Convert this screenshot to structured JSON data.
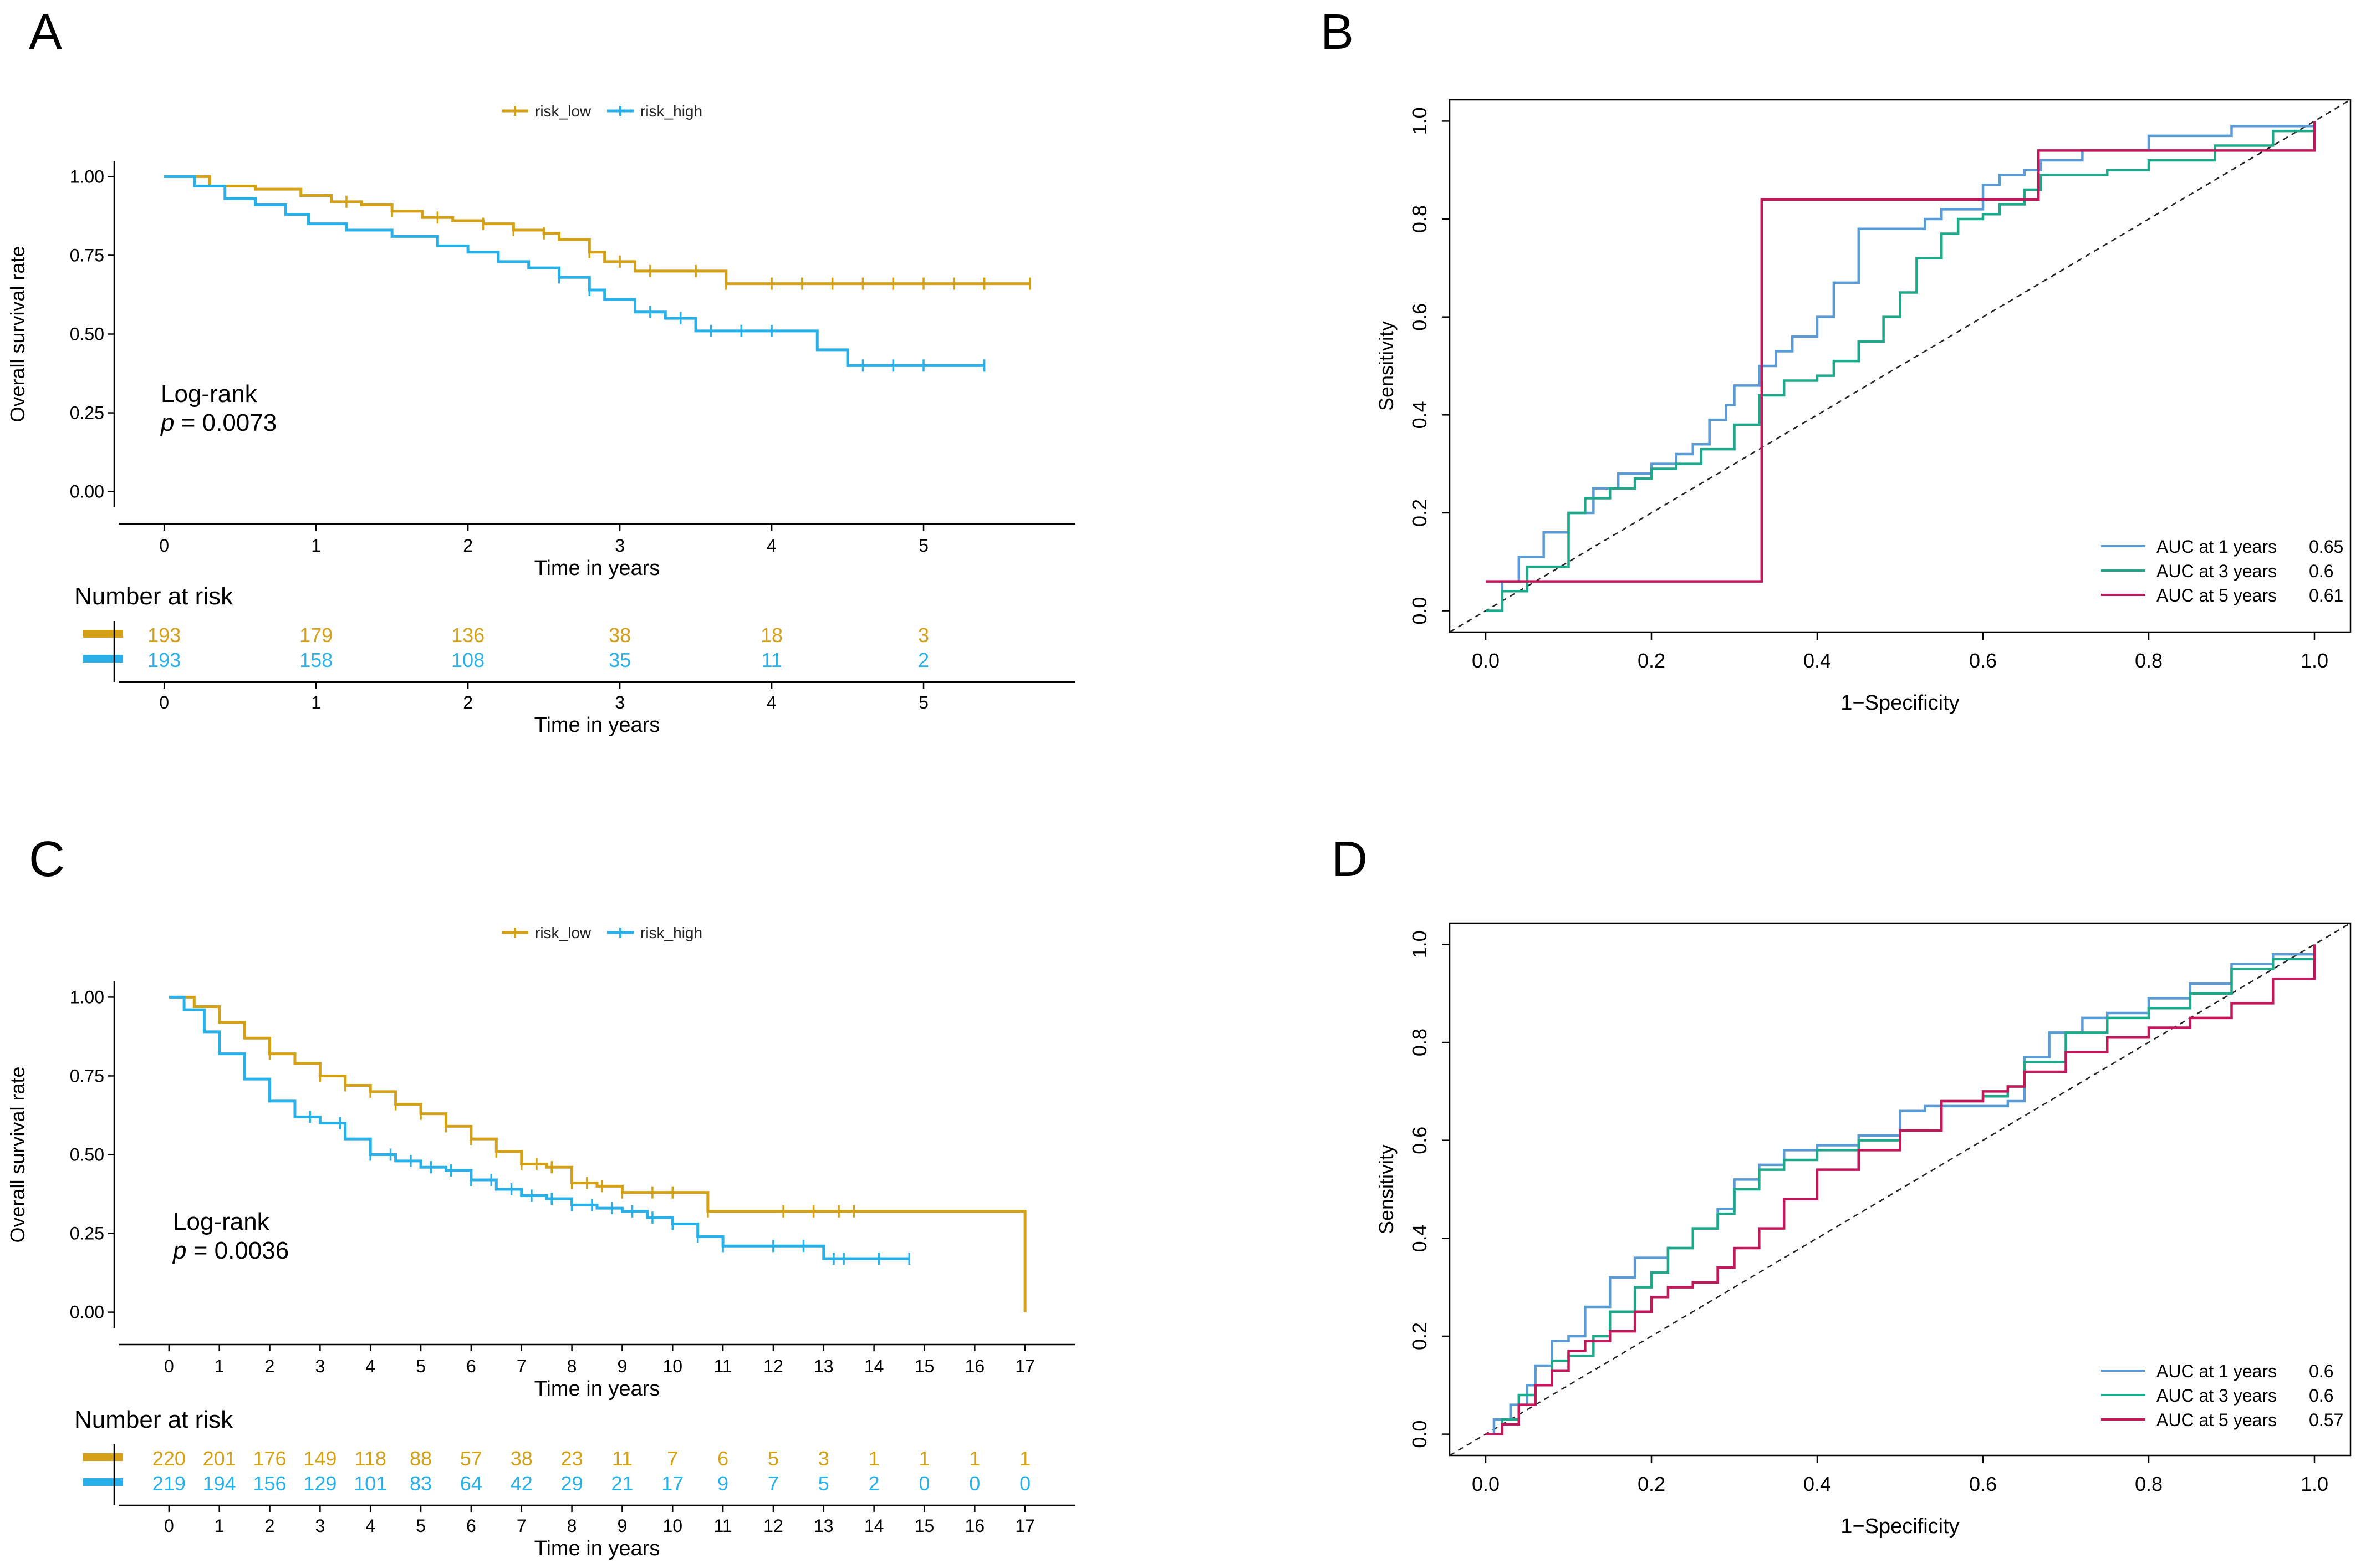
{
  "colors": {
    "low": "#D4A017",
    "high": "#29B0E8",
    "roc1": "#5B9BD5",
    "roc3": "#1FA98A",
    "roc5": "#C2185B"
  },
  "chart_data": [
    {
      "panel": "A",
      "type": "line",
      "subtype": "kaplan-meier",
      "legend": [
        "risk_low",
        "risk_high"
      ],
      "xlabel": "Time in years",
      "ylabel": "Overall survival rate",
      "xlim": [
        -0.3,
        6
      ],
      "ylim": [
        -0.05,
        1.05
      ],
      "xticks": [
        "0",
        "1",
        "2",
        "3",
        "4",
        "5"
      ],
      "yticks": [
        "0.00",
        "0.25",
        "0.50",
        "0.75",
        "1.00"
      ],
      "annotation": {
        "line1": "Log-rank",
        "p_label": "p",
        "p_value": "= 0.0073"
      },
      "series": [
        {
          "name": "risk_low",
          "x": [
            0,
            0.3,
            0.6,
            0.9,
            1.1,
            1.3,
            1.5,
            1.7,
            1.9,
            2.1,
            2.3,
            2.5,
            2.6,
            2.8,
            2.9,
            3.1,
            3.4,
            3.7,
            4.2,
            4.8,
            5.2,
            5.7
          ],
          "y": [
            1,
            0.97,
            0.96,
            0.94,
            0.92,
            0.91,
            0.89,
            0.87,
            0.86,
            0.85,
            0.83,
            0.82,
            0.8,
            0.76,
            0.73,
            0.7,
            0.7,
            0.66,
            0.66,
            0.66,
            0.66,
            0.66
          ]
        },
        {
          "name": "risk_high",
          "x": [
            0,
            0.2,
            0.4,
            0.6,
            0.8,
            0.95,
            1.2,
            1.5,
            1.8,
            2.0,
            2.2,
            2.4,
            2.6,
            2.8,
            2.9,
            3.1,
            3.3,
            3.5,
            3.9,
            4.3,
            4.5,
            5.0,
            5.4
          ],
          "y": [
            1,
            0.97,
            0.93,
            0.91,
            0.88,
            0.85,
            0.83,
            0.81,
            0.78,
            0.76,
            0.73,
            0.71,
            0.68,
            0.64,
            0.61,
            0.57,
            0.55,
            0.51,
            0.51,
            0.45,
            0.4,
            0.4,
            0.4
          ]
        }
      ],
      "censor_low": [
        1.2,
        1.5,
        1.8,
        2.1,
        2.3,
        2.5,
        2.8,
        3.0,
        3.2,
        3.5,
        3.7,
        4.0,
        4.2,
        4.4,
        4.6,
        4.8,
        5.0,
        5.2,
        5.4,
        5.7
      ],
      "censor_high": [
        2.6,
        2.8,
        3.2,
        3.4,
        3.6,
        3.8,
        4.0,
        4.6,
        4.8,
        5.0,
        5.4
      ],
      "risk_table": {
        "title": "Number at risk",
        "times": [
          "0",
          "1",
          "2",
          "3",
          "4",
          "5"
        ],
        "low": [
          "193",
          "179",
          "136",
          "38",
          "18",
          "3"
        ],
        "high": [
          "193",
          "158",
          "108",
          "35",
          "11",
          "2"
        ],
        "xlabel": "Time in years"
      }
    },
    {
      "panel": "B",
      "type": "line",
      "subtype": "roc",
      "xlabel": "1−Specificity",
      "ylabel": "Sensitivity",
      "xlim": [
        0,
        1
      ],
      "ylim": [
        0,
        1
      ],
      "xticks": [
        "0.0",
        "0.2",
        "0.4",
        "0.6",
        "0.8",
        "1.0"
      ],
      "yticks": [
        "0.0",
        "0.2",
        "0.4",
        "0.6",
        "0.8",
        "1.0"
      ],
      "series": [
        {
          "name": "AUC at 1 years",
          "auc": "0.65",
          "x": [
            0,
            0.02,
            0.02,
            0.04,
            0.04,
            0.07,
            0.1,
            0.13,
            0.16,
            0.2,
            0.23,
            0.25,
            0.27,
            0.29,
            0.3,
            0.33,
            0.35,
            0.37,
            0.4,
            0.42,
            0.45,
            0.5,
            0.53,
            0.55,
            0.57,
            0.6,
            0.62,
            0.65,
            0.67,
            0.72,
            0.8,
            0.9,
            1
          ],
          "y": [
            0,
            0.02,
            0.06,
            0.06,
            0.11,
            0.16,
            0.2,
            0.25,
            0.28,
            0.3,
            0.32,
            0.34,
            0.39,
            0.42,
            0.46,
            0.5,
            0.53,
            0.56,
            0.6,
            0.67,
            0.78,
            0.78,
            0.8,
            0.82,
            0.82,
            0.87,
            0.89,
            0.9,
            0.92,
            0.94,
            0.97,
            0.99,
            1
          ]
        },
        {
          "name": "AUC at 3 years",
          "auc": "0.6",
          "x": [
            0,
            0.02,
            0.05,
            0.1,
            0.12,
            0.15,
            0.18,
            0.2,
            0.23,
            0.26,
            0.3,
            0.33,
            0.36,
            0.4,
            0.42,
            0.45,
            0.48,
            0.5,
            0.52,
            0.55,
            0.57,
            0.6,
            0.62,
            0.65,
            0.67,
            0.7,
            0.75,
            0.8,
            0.88,
            0.95,
            1
          ],
          "y": [
            0,
            0.04,
            0.09,
            0.2,
            0.23,
            0.25,
            0.27,
            0.29,
            0.3,
            0.33,
            0.38,
            0.44,
            0.47,
            0.48,
            0.51,
            0.55,
            0.6,
            0.65,
            0.72,
            0.77,
            0.8,
            0.81,
            0.83,
            0.86,
            0.89,
            0.89,
            0.9,
            0.92,
            0.95,
            0.98,
            1
          ]
        },
        {
          "name": "AUC at 5 years",
          "auc": "0.61",
          "x": [
            0,
            0.333,
            0.333,
            0.667,
            0.667,
            1,
            1
          ],
          "y": [
            0.06,
            0.06,
            0.84,
            0.84,
            0.94,
            0.94,
            1
          ]
        }
      ]
    },
    {
      "panel": "C",
      "type": "line",
      "subtype": "kaplan-meier",
      "legend": [
        "risk_low",
        "risk_high"
      ],
      "xlabel": "Time in years",
      "ylabel": "Overall survival rate",
      "xlim": [
        -1,
        18
      ],
      "ylim": [
        -0.05,
        1.05
      ],
      "xticks": [
        "0",
        "1",
        "2",
        "3",
        "4",
        "5",
        "6",
        "7",
        "8",
        "9",
        "10",
        "11",
        "12",
        "13",
        "14",
        "15",
        "16",
        "17"
      ],
      "yticks": [
        "0.00",
        "0.25",
        "0.50",
        "0.75",
        "1.00"
      ],
      "annotation": {
        "line1": "Log-rank",
        "p_label": "p",
        "p_value": "= 0.0036"
      },
      "series": [
        {
          "name": "risk_low",
          "x": [
            0,
            0.5,
            1,
            1.5,
            2,
            2.5,
            3,
            3.5,
            4,
            4.5,
            5,
            5.5,
            6,
            6.5,
            7,
            7.5,
            8,
            8.5,
            9,
            10,
            10.7,
            11,
            12,
            13,
            14,
            15,
            16,
            17,
            17
          ],
          "y": [
            1,
            0.97,
            0.92,
            0.87,
            0.82,
            0.79,
            0.75,
            0.72,
            0.7,
            0.66,
            0.63,
            0.59,
            0.55,
            0.51,
            0.47,
            0.46,
            0.41,
            0.4,
            0.38,
            0.38,
            0.32,
            0.32,
            0.32,
            0.32,
            0.32,
            0.32,
            0.32,
            0.32,
            0.0
          ]
        },
        {
          "name": "risk_high",
          "x": [
            0,
            0.3,
            0.7,
            1,
            1.5,
            2,
            2.5,
            3,
            3.5,
            4,
            4.5,
            5,
            5.5,
            6,
            6.5,
            7,
            7.5,
            8,
            8.5,
            9,
            9.5,
            10,
            10.5,
            11,
            12,
            13,
            13.5,
            14,
            14.7
          ],
          "y": [
            1,
            0.96,
            0.89,
            0.82,
            0.74,
            0.67,
            0.62,
            0.6,
            0.55,
            0.5,
            0.48,
            0.46,
            0.45,
            0.42,
            0.39,
            0.37,
            0.36,
            0.34,
            0.33,
            0.32,
            0.3,
            0.28,
            0.24,
            0.21,
            0.21,
            0.17,
            0.17,
            0.17,
            0.17
          ]
        }
      ],
      "censor_low": [
        2,
        3,
        3.5,
        4,
        4.5,
        5,
        5.5,
        6,
        6.5,
        7,
        7.3,
        7.6,
        8,
        8.3,
        8.6,
        9,
        9.6,
        10,
        10.7,
        12.2,
        12.8,
        13.3,
        13.6
      ],
      "censor_high": [
        2.8,
        3.4,
        4,
        4.4,
        4.8,
        5.2,
        5.6,
        6,
        6.4,
        6.8,
        7.2,
        7.6,
        8,
        8.4,
        8.8,
        9.2,
        9.6,
        10,
        10.5,
        11,
        12,
        12.6,
        13.2,
        13.4,
        14.1,
        14.7
      ],
      "risk_table": {
        "title": "Number at risk",
        "times": [
          "0",
          "1",
          "2",
          "3",
          "4",
          "5",
          "6",
          "7",
          "8",
          "9",
          "10",
          "11",
          "12",
          "13",
          "14",
          "15",
          "16",
          "17"
        ],
        "low": [
          "220",
          "201",
          "176",
          "149",
          "118",
          "88",
          "57",
          "38",
          "23",
          "11",
          "7",
          "6",
          "5",
          "3",
          "1",
          "1",
          "1",
          "1"
        ],
        "high": [
          "219",
          "194",
          "156",
          "129",
          "101",
          "83",
          "64",
          "42",
          "29",
          "21",
          "17",
          "9",
          "7",
          "5",
          "2",
          "0",
          "0",
          "0"
        ],
        "xlabel": "Time in years"
      }
    },
    {
      "panel": "D",
      "type": "line",
      "subtype": "roc",
      "xlabel": "1−Specificity",
      "ylabel": "Sensitivity",
      "xlim": [
        0,
        1
      ],
      "ylim": [
        0,
        1
      ],
      "xticks": [
        "0.0",
        "0.2",
        "0.4",
        "0.6",
        "0.8",
        "1.0"
      ],
      "yticks": [
        "0.0",
        "0.2",
        "0.4",
        "0.6",
        "0.8",
        "1.0"
      ],
      "series": [
        {
          "name": "AUC at 1 years",
          "auc": "0.6",
          "x": [
            0,
            0.01,
            0.03,
            0.05,
            0.06,
            0.08,
            0.1,
            0.12,
            0.15,
            0.18,
            0.2,
            0.22,
            0.25,
            0.28,
            0.3,
            0.33,
            0.36,
            0.4,
            0.45,
            0.5,
            0.53,
            0.6,
            0.63,
            0.65,
            0.68,
            0.72,
            0.75,
            0.8,
            0.85,
            0.9,
            0.95,
            1
          ],
          "y": [
            0,
            0.03,
            0.06,
            0.1,
            0.14,
            0.19,
            0.2,
            0.26,
            0.32,
            0.36,
            0.36,
            0.38,
            0.42,
            0.46,
            0.52,
            0.55,
            0.58,
            0.59,
            0.61,
            0.66,
            0.67,
            0.67,
            0.68,
            0.77,
            0.82,
            0.85,
            0.86,
            0.89,
            0.92,
            0.96,
            0.98,
            1
          ]
        },
        {
          "name": "AUC at 3 years",
          "auc": "0.6",
          "x": [
            0,
            0.02,
            0.04,
            0.06,
            0.08,
            0.1,
            0.13,
            0.15,
            0.18,
            0.2,
            0.22,
            0.25,
            0.28,
            0.3,
            0.33,
            0.36,
            0.4,
            0.45,
            0.5,
            0.55,
            0.6,
            0.63,
            0.65,
            0.7,
            0.75,
            0.8,
            0.85,
            0.9,
            0.95,
            1
          ],
          "y": [
            0,
            0.03,
            0.08,
            0.1,
            0.15,
            0.16,
            0.2,
            0.25,
            0.3,
            0.33,
            0.38,
            0.42,
            0.45,
            0.5,
            0.54,
            0.56,
            0.58,
            0.6,
            0.62,
            0.68,
            0.69,
            0.71,
            0.76,
            0.82,
            0.85,
            0.87,
            0.9,
            0.95,
            0.97,
            1
          ]
        },
        {
          "name": "AUC at 5 years",
          "auc": "0.57",
          "x": [
            0,
            0.02,
            0.04,
            0.06,
            0.08,
            0.1,
            0.12,
            0.15,
            0.18,
            0.2,
            0.22,
            0.25,
            0.28,
            0.3,
            0.33,
            0.36,
            0.4,
            0.45,
            0.5,
            0.55,
            0.6,
            0.63,
            0.65,
            0.7,
            0.75,
            0.8,
            0.85,
            0.9,
            0.95,
            1
          ],
          "y": [
            0,
            0.02,
            0.06,
            0.1,
            0.13,
            0.17,
            0.19,
            0.21,
            0.25,
            0.28,
            0.3,
            0.31,
            0.34,
            0.38,
            0.42,
            0.48,
            0.54,
            0.58,
            0.62,
            0.68,
            0.7,
            0.71,
            0.74,
            0.78,
            0.81,
            0.83,
            0.85,
            0.88,
            0.93,
            1
          ]
        }
      ]
    }
  ]
}
